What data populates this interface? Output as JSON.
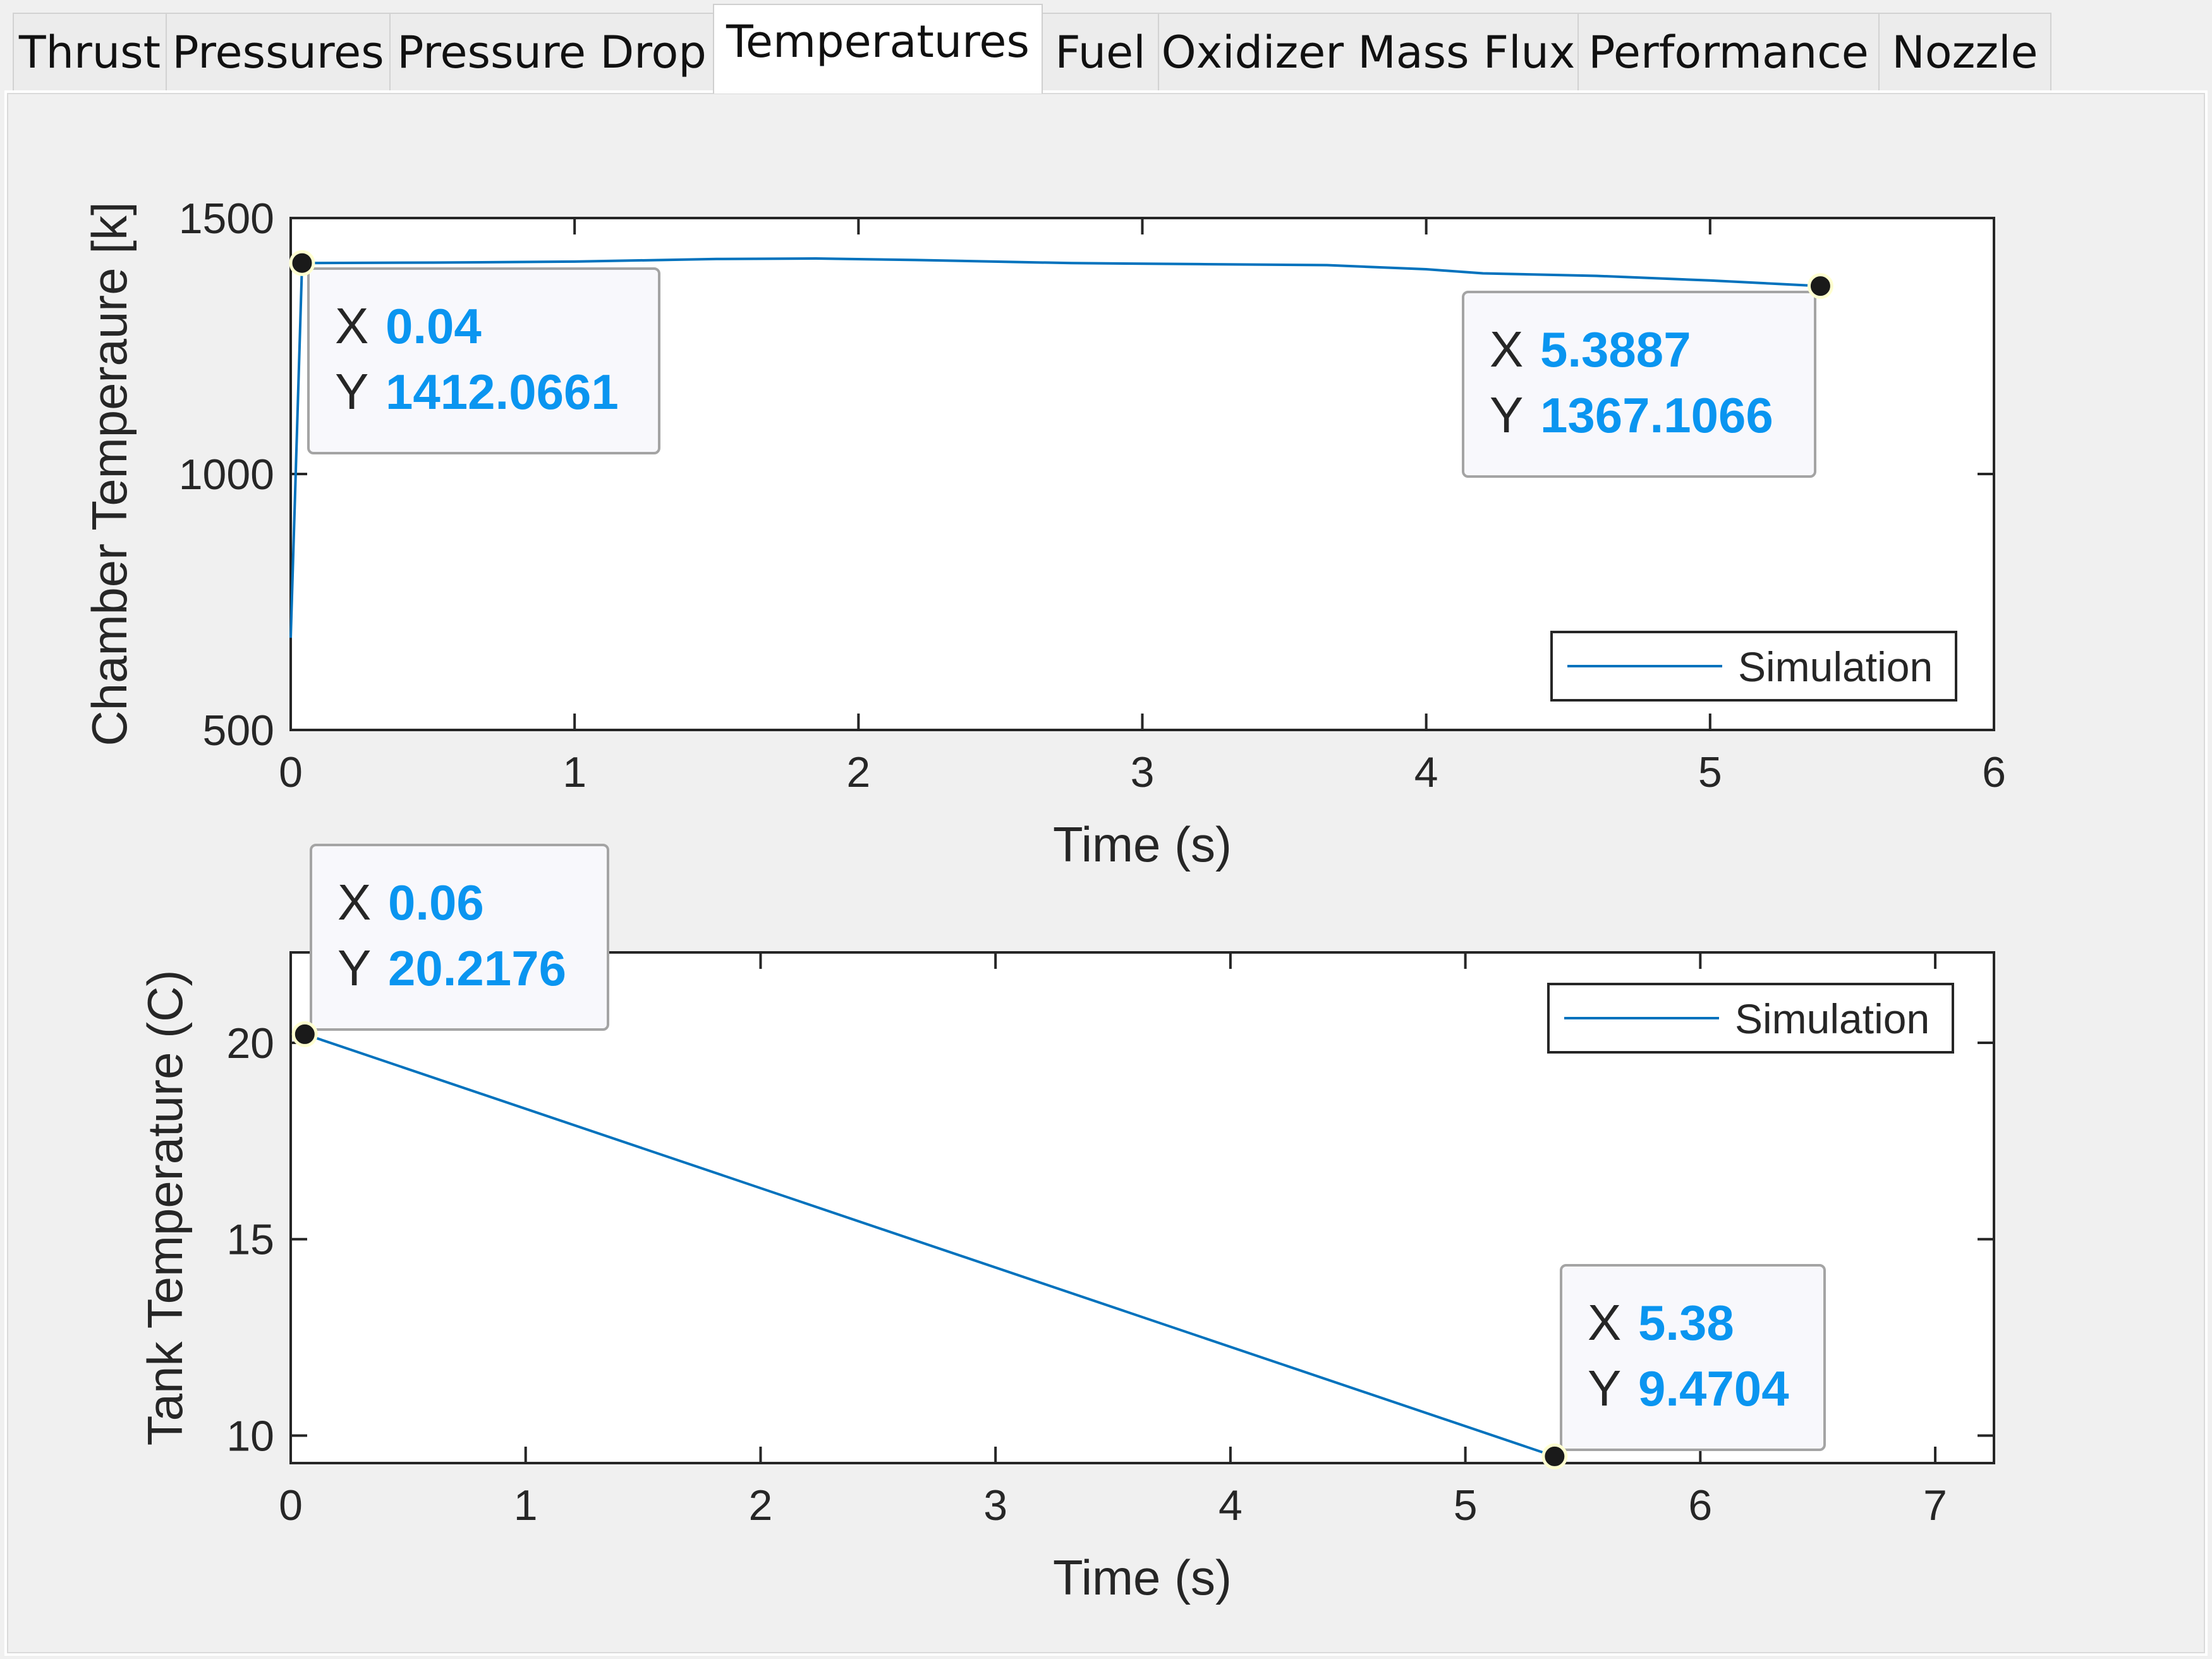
{
  "tabs": [
    {
      "label": "Thrust",
      "active": false
    },
    {
      "label": "Pressures",
      "active": false
    },
    {
      "label": "Pressure Drop",
      "active": false
    },
    {
      "label": "Temperatures",
      "active": true
    },
    {
      "label": "Fuel",
      "active": false
    },
    {
      "label": "Oxidizer Mass Flux",
      "active": false
    },
    {
      "label": "Performance",
      "active": false
    },
    {
      "label": "Nozzle",
      "active": false
    }
  ],
  "colors": {
    "series": "#0072bd",
    "datatip_value": "#0a95f0",
    "datatip_letter": "#262626"
  },
  "chart_data": [
    {
      "type": "line",
      "xlabel": "Time (s)",
      "ylabel": "Chamber Temperaure [k]",
      "xlim": [
        0,
        6
      ],
      "ylim": [
        500,
        1500
      ],
      "xticks": [
        "0",
        "1",
        "2",
        "3",
        "4",
        "5",
        "6"
      ],
      "yticks": [
        "500",
        "1000",
        "1500"
      ],
      "grid": false,
      "legend_position": "bottom-right",
      "series": [
        {
          "name": "Simulation",
          "x": [
            0,
            0.04,
            0.5,
            1.0,
            1.5,
            1.85,
            2.2,
            2.75,
            3.2,
            3.65,
            4.0,
            4.2,
            4.6,
            5.0,
            5.3887
          ],
          "y": [
            680,
            1412.0661,
            1413,
            1415,
            1420,
            1421,
            1418,
            1412,
            1410,
            1408,
            1400,
            1392,
            1387,
            1378,
            1367.1066
          ]
        }
      ],
      "datatips": [
        {
          "x_label": "X",
          "x_value": "0.04",
          "y_label": "Y",
          "y_value": "1412.0661",
          "x": 0.04,
          "y": 1412.0661
        },
        {
          "x_label": "X",
          "x_value": "5.3887",
          "y_label": "Y",
          "y_value": "1367.1066",
          "x": 5.3887,
          "y": 1367.1066
        }
      ]
    },
    {
      "type": "line",
      "xlabel": "Time (s)",
      "ylabel": "Tank Temperature (C)",
      "xlim": [
        0,
        7.25
      ],
      "ylim": [
        9.3,
        22.3
      ],
      "xticks": [
        "0",
        "1",
        "2",
        "3",
        "4",
        "5",
        "6",
        "7"
      ],
      "yticks": [
        "10",
        "15",
        "20"
      ],
      "grid": false,
      "legend_position": "top-right",
      "series": [
        {
          "name": "Simulation",
          "x": [
            0.06,
            5.38
          ],
          "y": [
            20.2176,
            9.4704
          ]
        }
      ],
      "datatips": [
        {
          "x_label": "X",
          "x_value": "0.06",
          "y_label": "Y",
          "y_value": "20.2176",
          "x": 0.06,
          "y": 20.2176
        },
        {
          "x_label": "X",
          "x_value": "5.38",
          "y_label": "Y",
          "y_value": "9.4704",
          "x": 5.38,
          "y": 9.4704
        }
      ]
    }
  ]
}
